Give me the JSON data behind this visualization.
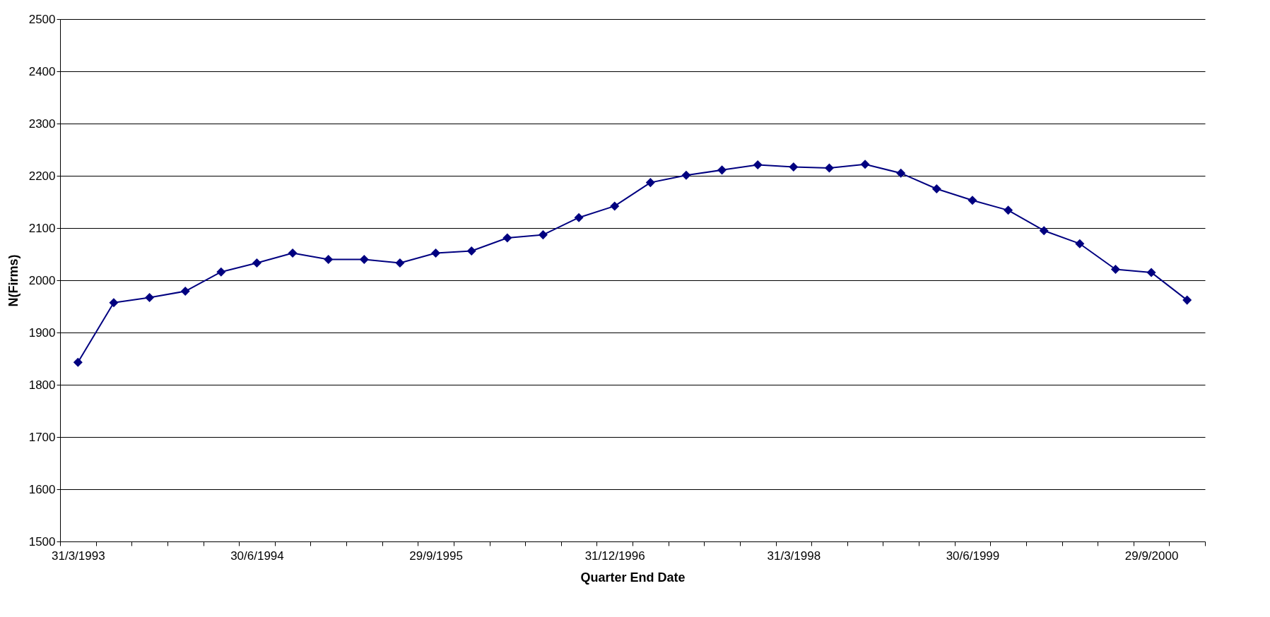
{
  "chart_data": {
    "type": "line",
    "xlabel": "Quarter End Date",
    "ylabel": "N(Firms)",
    "categories": [
      "31/3/1993",
      null,
      null,
      null,
      null,
      "30/6/1994",
      null,
      null,
      null,
      null,
      "29/9/1995",
      null,
      null,
      null,
      null,
      "31/12/1996",
      null,
      null,
      null,
      null,
      "31/3/1998",
      null,
      null,
      null,
      null,
      "30/6/1999",
      null,
      null,
      null,
      null,
      "29/9/2000",
      null
    ],
    "series": [
      {
        "color": "#000080",
        "values": [
          1843,
          1957,
          1967,
          1979,
          2016,
          2033,
          2052,
          2040,
          2040,
          2033,
          2052,
          2056,
          2081,
          2087,
          2120,
          2142,
          2187,
          2201,
          2211,
          2221,
          2217,
          2215,
          2222,
          2205,
          2175,
          2153,
          2134,
          2095,
          2070,
          2021,
          2015,
          1962
        ]
      }
    ],
    "ylim": [
      1500,
      2500
    ],
    "yticks": [
      1500,
      1600,
      1700,
      1800,
      1900,
      2000,
      2100,
      2200,
      2300,
      2400,
      2500
    ],
    "grid": "y",
    "marker": "diamond",
    "legend": false
  }
}
